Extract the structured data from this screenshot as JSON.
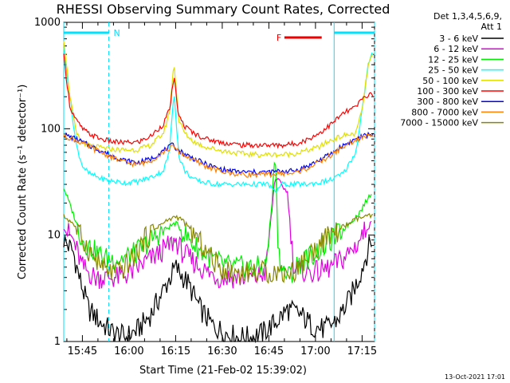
{
  "chart_data": {
    "type": "line",
    "title": "RHESSI Observing Summary Count Rates, Corrected",
    "xlabel": "Start Time (21-Feb-02 15:39:02)",
    "ylabel": "Corrected Count Rate (s⁻¹ detector⁻¹)",
    "y_scale": "log",
    "ylim": [
      1,
      1000
    ],
    "xlim_minutes": [
      0,
      100
    ],
    "x_ticks": [
      {
        "label": "15:45",
        "minute": 6
      },
      {
        "label": "16:00",
        "minute": 21
      },
      {
        "label": "16:15",
        "minute": 36
      },
      {
        "label": "16:30",
        "minute": 51
      },
      {
        "label": "16:45",
        "minute": 66
      },
      {
        "label": "17:00",
        "minute": 81
      },
      {
        "label": "17:15",
        "minute": 96
      }
    ],
    "y_ticks": [
      {
        "label": "1",
        "value": 1
      },
      {
        "label": "10",
        "value": 10
      },
      {
        "label": "100",
        "value": 100
      },
      {
        "label": "1000",
        "value": 1000
      }
    ],
    "legend": {
      "placement": "right",
      "header_line1": "Det 1,3,4,5,6,9,",
      "header_line2": "Att 1"
    },
    "annotations": {
      "night_label": "N",
      "flare_label": "F",
      "night_bars": [
        [
          0,
          14.5
        ],
        [
          87,
          100
        ]
      ],
      "night_verticals": [
        0,
        14.5,
        87,
        100
      ],
      "flare_bar": [
        71,
        83
      ]
    },
    "series": [
      {
        "name": "3 - 6 keV",
        "color": "#000000",
        "x": [
          0,
          3,
          5,
          8,
          12,
          16,
          20,
          24,
          28,
          32,
          36,
          40,
          44,
          48,
          52,
          56,
          60,
          64,
          68,
          72,
          76,
          80,
          84,
          88,
          92,
          95,
          97,
          99
        ],
        "y": [
          9,
          7,
          4,
          2,
          1.5,
          1.2,
          1.1,
          1.3,
          1.8,
          3,
          5,
          3.5,
          2,
          1.4,
          1.2,
          1.1,
          1.1,
          1.2,
          1.5,
          2,
          1.8,
          1.4,
          1.3,
          1.6,
          2.5,
          4,
          6,
          9
        ]
      },
      {
        "name": "6 - 12 keV",
        "color": "#e000e0",
        "x": [
          0,
          3,
          6,
          10,
          14,
          18,
          22,
          26,
          30,
          34,
          36,
          38,
          42,
          46,
          50,
          54,
          58,
          62,
          65,
          68,
          70,
          72,
          74,
          78,
          82,
          86,
          90,
          94,
          97,
          99
        ],
        "y": [
          12,
          9,
          5,
          4,
          4,
          4,
          4.5,
          5.5,
          6.5,
          8,
          9,
          7,
          5.5,
          4.5,
          4,
          4,
          4,
          4,
          4.5,
          35,
          30,
          25,
          5,
          4.5,
          4.5,
          5,
          6,
          8,
          11,
          13
        ]
      },
      {
        "name": "12 - 25 keV",
        "color": "#00ee00",
        "x": [
          0,
          3,
          6,
          10,
          14,
          18,
          22,
          26,
          30,
          34,
          36,
          38,
          42,
          46,
          50,
          54,
          58,
          62,
          65,
          67,
          68,
          69,
          70,
          72,
          76,
          80,
          84,
          88,
          92,
          95,
          97,
          99
        ],
        "y": [
          28,
          16,
          9,
          7,
          6,
          6,
          6.5,
          8,
          10,
          12,
          13,
          11,
          8,
          6.5,
          5.5,
          5,
          5,
          5,
          5,
          20,
          65,
          8,
          5,
          4,
          5.5,
          6.5,
          8,
          10,
          13,
          16,
          20,
          25
        ]
      },
      {
        "name": "25 - 50 keV",
        "color": "#00ffff",
        "x": [
          0,
          2,
          4,
          6,
          8,
          12,
          16,
          20,
          24,
          28,
          32,
          34,
          35.5,
          37,
          39,
          42,
          46,
          50,
          54,
          58,
          62,
          66,
          68,
          70,
          74,
          78,
          82,
          86,
          90,
          94,
          96,
          98,
          99.5
        ],
        "y": [
          600,
          200,
          70,
          45,
          38,
          34,
          32,
          31,
          32,
          35,
          40,
          60,
          230,
          55,
          40,
          33,
          31,
          30,
          30,
          30,
          30,
          30,
          25,
          30,
          30,
          30,
          31,
          33,
          38,
          60,
          150,
          400,
          520
        ]
      },
      {
        "name": "50 - 100 keV",
        "color": "#e0e000",
        "x": [
          0,
          2,
          4,
          6,
          8,
          12,
          16,
          20,
          24,
          28,
          32,
          34,
          35.5,
          37,
          39,
          42,
          46,
          50,
          54,
          58,
          62,
          66,
          70,
          74,
          78,
          82,
          86,
          90,
          94,
          96,
          98,
          99.5
        ],
        "y": [
          700,
          200,
          90,
          75,
          70,
          66,
          64,
          63,
          64,
          70,
          90,
          140,
          420,
          120,
          90,
          75,
          67,
          63,
          60,
          58,
          57,
          57,
          57,
          58,
          62,
          67,
          78,
          86,
          90,
          150,
          400,
          500
        ]
      },
      {
        "name": "100 - 300 keV",
        "color": "#ff0000",
        "x": [
          0,
          2,
          4,
          6,
          8,
          12,
          16,
          20,
          24,
          28,
          32,
          34,
          35.5,
          37,
          39,
          42,
          46,
          50,
          54,
          58,
          62,
          66,
          70,
          74,
          78,
          82,
          86,
          90,
          94,
          96,
          98,
          99.5
        ],
        "y": [
          480,
          160,
          120,
          100,
          90,
          80,
          75,
          74,
          75,
          85,
          110,
          150,
          300,
          130,
          105,
          90,
          80,
          75,
          72,
          70,
          70,
          70,
          70,
          72,
          78,
          90,
          110,
          140,
          160,
          190,
          210,
          210
        ]
      },
      {
        "name": "300 - 800 keV",
        "color": "#0000ff",
        "x": [
          0,
          4,
          8,
          12,
          16,
          20,
          24,
          28,
          32,
          35,
          38,
          42,
          46,
          50,
          54,
          58,
          62,
          66,
          70,
          74,
          78,
          82,
          86,
          90,
          94,
          97,
          99.5
        ],
        "y": [
          88,
          80,
          70,
          62,
          55,
          50,
          48,
          52,
          62,
          70,
          60,
          52,
          46,
          42,
          40,
          39,
          39,
          39,
          40,
          40,
          44,
          50,
          58,
          70,
          80,
          86,
          90
        ]
      },
      {
        "name": "800 - 7000 keV",
        "color": "#ff8000",
        "x": [
          0,
          4,
          8,
          12,
          16,
          20,
          24,
          28,
          32,
          35,
          38,
          42,
          46,
          50,
          54,
          58,
          62,
          66,
          70,
          74,
          78,
          82,
          86,
          90,
          94,
          97,
          99.5
        ],
        "y": [
          86,
          78,
          68,
          60,
          53,
          48,
          46,
          50,
          60,
          68,
          58,
          50,
          44,
          40,
          38,
          37,
          37,
          37,
          38,
          38,
          42,
          48,
          56,
          68,
          78,
          84,
          88
        ]
      },
      {
        "name": "7000 - 15000 keV",
        "color": "#888800",
        "x": [
          0,
          3,
          6,
          10,
          14,
          18,
          22,
          26,
          30,
          34,
          36,
          38,
          42,
          46,
          50,
          54,
          58,
          62,
          66,
          70,
          74,
          78,
          82,
          86,
          90,
          94,
          97,
          99.5
        ],
        "y": [
          15,
          13,
          9,
          6,
          4.5,
          4.5,
          6,
          9,
          12,
          14,
          15,
          14,
          10,
          7,
          5,
          4.5,
          4.5,
          4.5,
          4.5,
          4.5,
          4.5,
          6,
          8,
          10,
          12,
          14,
          15,
          15
        ]
      }
    ],
    "footer_date": "13-Oct-2021 17:01"
  }
}
